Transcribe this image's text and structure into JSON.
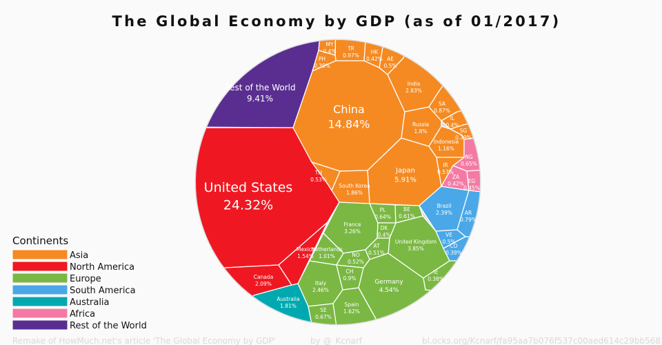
{
  "title": "The Global Economy by GDP (as of 01/2017)",
  "legend": {
    "title": "Continents",
    "items": [
      {
        "name": "Asia",
        "color": "#F58A22"
      },
      {
        "name": "North America",
        "color": "#EF1822"
      },
      {
        "name": "Europe",
        "color": "#7AB843"
      },
      {
        "name": "South America",
        "color": "#4AA8E8"
      },
      {
        "name": "Australia",
        "color": "#00A9B0"
      },
      {
        "name": "Africa",
        "color": "#F47AA4"
      },
      {
        "name": "Rest of the World",
        "color": "#5A2E91"
      }
    ]
  },
  "footer": {
    "credit": "Remake of HowMuch.net's article 'The Global Economy by GDP'",
    "author": "by @_Kcnarf",
    "link": "bl.ocks.org/Kcnarf/fa95aa7b076f537c00aed614c29bb568"
  },
  "chart_data": {
    "type": "voronoi-treemap",
    "title": "The Global Economy by GDP (as of 01/2017)",
    "unit": "% of world GDP",
    "cells": [
      {
        "name": "United States",
        "value": 24.32,
        "label": "24.32%",
        "continent": "North America"
      },
      {
        "name": "China",
        "value": 14.84,
        "label": "14.84%",
        "continent": "Asia"
      },
      {
        "name": "Rest of the World",
        "value": 9.41,
        "label": "9.41%",
        "continent": "Rest of the World"
      },
      {
        "name": "Japan",
        "value": 5.91,
        "label": "5.91%",
        "continent": "Asia"
      },
      {
        "name": "Germany",
        "value": 4.54,
        "label": "4.54%",
        "continent": "Europe"
      },
      {
        "name": "United Kingdom",
        "value": 3.85,
        "label": "3.85%",
        "continent": "Europe"
      },
      {
        "name": "France",
        "value": 3.26,
        "label": "3.26%",
        "continent": "Europe"
      },
      {
        "name": "India",
        "value": 2.83,
        "label": "2.83%",
        "continent": "Asia"
      },
      {
        "name": "Italy",
        "value": 2.46,
        "label": "2.46%",
        "continent": "Europe"
      },
      {
        "name": "Brazil",
        "value": 2.39,
        "label": "2.39%",
        "continent": "South America"
      },
      {
        "name": "Canada",
        "value": 2.09,
        "label": "2.09%",
        "continent": "North America"
      },
      {
        "name": "South Korea",
        "value": 1.86,
        "label": "1.86%",
        "continent": "Asia"
      },
      {
        "name": "Australia",
        "value": 1.81,
        "label": "1.81%",
        "continent": "Australia"
      },
      {
        "name": "Russia",
        "value": 1.8,
        "label": "1.8%",
        "continent": "Asia"
      },
      {
        "name": "Spain",
        "value": 1.62,
        "label": "1.62%",
        "continent": "Europe"
      },
      {
        "name": "Mexico",
        "value": 1.54,
        "label": "1.54%",
        "continent": "North America"
      },
      {
        "name": "Indonesia",
        "value": 1.16,
        "label": "1.16%",
        "continent": "Asia"
      },
      {
        "name": "Netherlands",
        "value": 1.01,
        "label": "1.01%",
        "continent": "Europe"
      },
      {
        "name": "TR",
        "value": 0.97,
        "label": "0.97%",
        "continent": "Asia"
      },
      {
        "name": "CH",
        "value": 0.9,
        "label": "0.9%",
        "continent": "Europe"
      },
      {
        "name": "SA",
        "value": 0.87,
        "label": "0.87%",
        "continent": "Asia"
      },
      {
        "name": "AR",
        "value": 0.79,
        "label": "0.79%",
        "continent": "South America"
      },
      {
        "name": "SE",
        "value": 0.67,
        "label": "0.67%",
        "continent": "Europe"
      },
      {
        "name": "NG",
        "value": 0.65,
        "label": "0.65%",
        "continent": "Africa"
      },
      {
        "name": "PL",
        "value": 0.64,
        "label": "0.64%",
        "continent": "Europe"
      },
      {
        "name": "BE",
        "value": 0.61,
        "label": "0.61%",
        "continent": "Europe"
      },
      {
        "name": "IR",
        "value": 0.57,
        "label": "0.57%",
        "continent": "Asia"
      },
      {
        "name": "TH",
        "value": 0.53,
        "label": "0.53%",
        "continent": "Asia"
      },
      {
        "name": "NO",
        "value": 0.52,
        "label": "0.52%",
        "continent": "Europe"
      },
      {
        "name": "AT",
        "value": 0.51,
        "label": "0.51%",
        "continent": "Europe"
      },
      {
        "name": "AE",
        "value": 0.5,
        "label": "0.5%",
        "continent": "Asia"
      },
      {
        "name": "VE",
        "value": 0.5,
        "label": "0.5%",
        "continent": "South America"
      },
      {
        "name": "EG",
        "value": 0.45,
        "label": "0.45%",
        "continent": "Africa"
      },
      {
        "name": "ZA",
        "value": 0.42,
        "label": "0.42%",
        "continent": "Africa"
      },
      {
        "name": "HK",
        "value": 0.42,
        "label": "0.42%",
        "continent": "Asia"
      },
      {
        "name": "MY",
        "value": 0.4,
        "label": "0.4%",
        "continent": "Asia"
      },
      {
        "name": "IL",
        "value": 0.4,
        "label": "0.4%",
        "continent": "Asia"
      },
      {
        "name": "DK",
        "value": 0.4,
        "label": "0.4%",
        "continent": "Europe"
      },
      {
        "name": "SG",
        "value": 0.39,
        "label": "0.39%",
        "continent": "Asia"
      },
      {
        "name": "CO",
        "value": 0.39,
        "label": "0.39%",
        "continent": "South America"
      },
      {
        "name": "PH",
        "value": 0.39,
        "label": "0.39%",
        "continent": "Asia"
      },
      {
        "name": "IE",
        "value": 0.38,
        "label": "0.38%",
        "continent": "Europe"
      }
    ]
  }
}
